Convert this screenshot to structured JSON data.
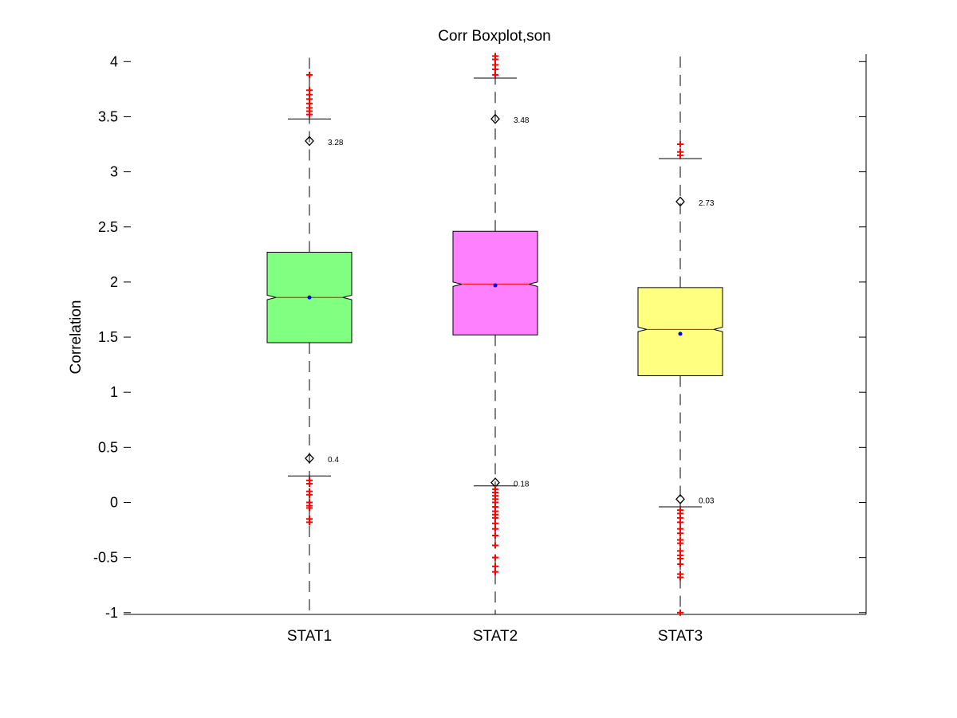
{
  "chart_data": {
    "type": "boxplot",
    "title": "Corr Boxplot,son",
    "xlabel": "",
    "ylabel": "Correlation",
    "ylim": [
      -1,
      4.05
    ],
    "yticks": [
      -1,
      -0.5,
      0,
      0.5,
      1,
      1.5,
      2,
      2.5,
      3,
      3.5,
      4
    ],
    "ytick_labels": [
      "-1",
      "-0.5",
      "0",
      "0.5",
      "1",
      "1.5",
      "2",
      "2.5",
      "3",
      "3.5",
      "4"
    ],
    "notched": true,
    "grid": false,
    "categories": [
      "STAT1",
      "STAT2",
      "STAT3"
    ],
    "boxes": [
      {
        "name": "STAT1",
        "color": "#80ff80",
        "q1": 1.45,
        "median": 1.86,
        "q3": 2.27,
        "notch_low": 1.84,
        "notch_high": 1.88,
        "whisker_low": 0.24,
        "whisker_high": 3.48,
        "mean": 1.86,
        "marker_high": 3.28,
        "marker_high_label": "3.28",
        "marker_low": 0.4,
        "marker_low_label": "0.4",
        "outliers_high": [
          3.52,
          3.55,
          3.58,
          3.62,
          3.66,
          3.7,
          3.74,
          3.88
        ],
        "outliers_low": [
          0.2,
          0.17,
          0.1,
          0.07,
          0.0,
          -0.03,
          -0.05,
          -0.15,
          -0.18
        ]
      },
      {
        "name": "STAT2",
        "color": "#ff80ff",
        "q1": 1.52,
        "median": 1.98,
        "q3": 2.46,
        "notch_low": 1.96,
        "notch_high": 2.0,
        "whisker_low": 0.15,
        "whisker_high": 3.85,
        "mean": 1.97,
        "marker_high": 3.48,
        "marker_high_label": "3.48",
        "marker_low": 0.18,
        "marker_low_label": "0.18",
        "outliers_high": [
          3.88,
          3.93,
          3.97,
          4.02,
          4.05
        ],
        "outliers_low": [
          0.12,
          0.09,
          0.06,
          0.03,
          0.0,
          -0.04,
          -0.08,
          -0.11,
          -0.14,
          -0.19,
          -0.24,
          -0.3,
          -0.39,
          -0.5,
          -0.58,
          -0.63
        ]
      },
      {
        "name": "STAT3",
        "color": "#ffff80",
        "q1": 1.15,
        "median": 1.57,
        "q3": 1.95,
        "notch_low": 1.55,
        "notch_high": 1.59,
        "whisker_low": -0.04,
        "whisker_high": 3.12,
        "mean": 1.53,
        "marker_high": 2.73,
        "marker_high_label": "2.73",
        "marker_low": 0.03,
        "marker_low_label": "0.03",
        "outliers_high": [
          3.15,
          3.18,
          3.25
        ],
        "outliers_low": [
          -0.07,
          -0.1,
          -0.14,
          -0.18,
          -0.24,
          -0.28,
          -0.34,
          -0.37,
          -0.44,
          -0.48,
          -0.51,
          -0.56,
          -0.65,
          -0.68,
          -1.0
        ]
      }
    ],
    "colors": {
      "mean_dot": "#0000ff",
      "median_line": "#ff0000",
      "outlier": "#ff0000",
      "axis": "#000000"
    }
  }
}
